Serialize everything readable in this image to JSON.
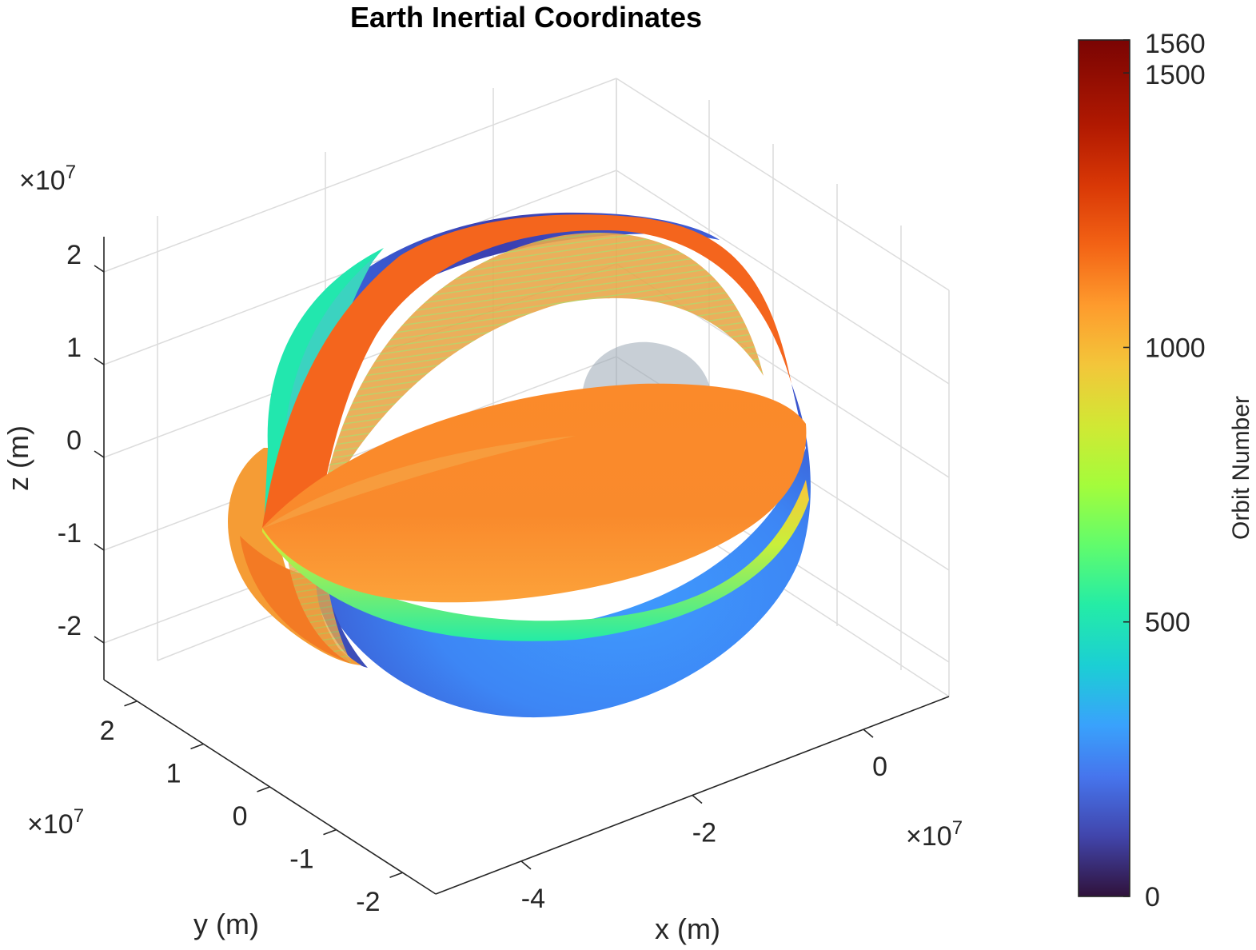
{
  "chart_data": {
    "type": "3d-surface",
    "title": "Earth Inertial Coordinates",
    "xlabel": "x (m)",
    "ylabel": "y (m)",
    "zlabel": "z (m)",
    "x_multiplier": "×10",
    "x_multiplier_exp": "7",
    "y_multiplier": "×10",
    "y_multiplier_exp": "7",
    "z_multiplier": "×10",
    "z_multiplier_exp": "7",
    "x_ticks": [
      "-4",
      "-2",
      "0"
    ],
    "x_tick_values": [
      -4,
      -2,
      0
    ],
    "y_ticks": [
      "2",
      "1",
      "0",
      "-1",
      "-2"
    ],
    "y_tick_values": [
      2,
      1,
      0,
      -1,
      -2
    ],
    "z_ticks": [
      "2",
      "1",
      "0",
      "-1",
      "-2"
    ],
    "z_tick_values": [
      2,
      1,
      0,
      -1,
      -2
    ],
    "xlim": [
      -5,
      1
    ],
    "ylim": [
      -2.5,
      2.5
    ],
    "zlim": [
      -2.5,
      2.5
    ],
    "grid": true,
    "colorbar": {
      "label": "Orbit Number",
      "ticks": [
        "0",
        "500",
        "1000",
        "1500",
        "1560"
      ],
      "tick_values": [
        0,
        500,
        1000,
        1500,
        1560
      ],
      "range": [
        0,
        1560
      ],
      "colormap": "turbo",
      "placement": "right"
    },
    "colors": {
      "low": "#30123b",
      "blue": "#3e9bfe",
      "cyan": "#1ae4b6",
      "green": "#a4fc3c",
      "yellow": "#fbb938",
      "orange": "#f3631e",
      "high": "#7a0403"
    }
  }
}
